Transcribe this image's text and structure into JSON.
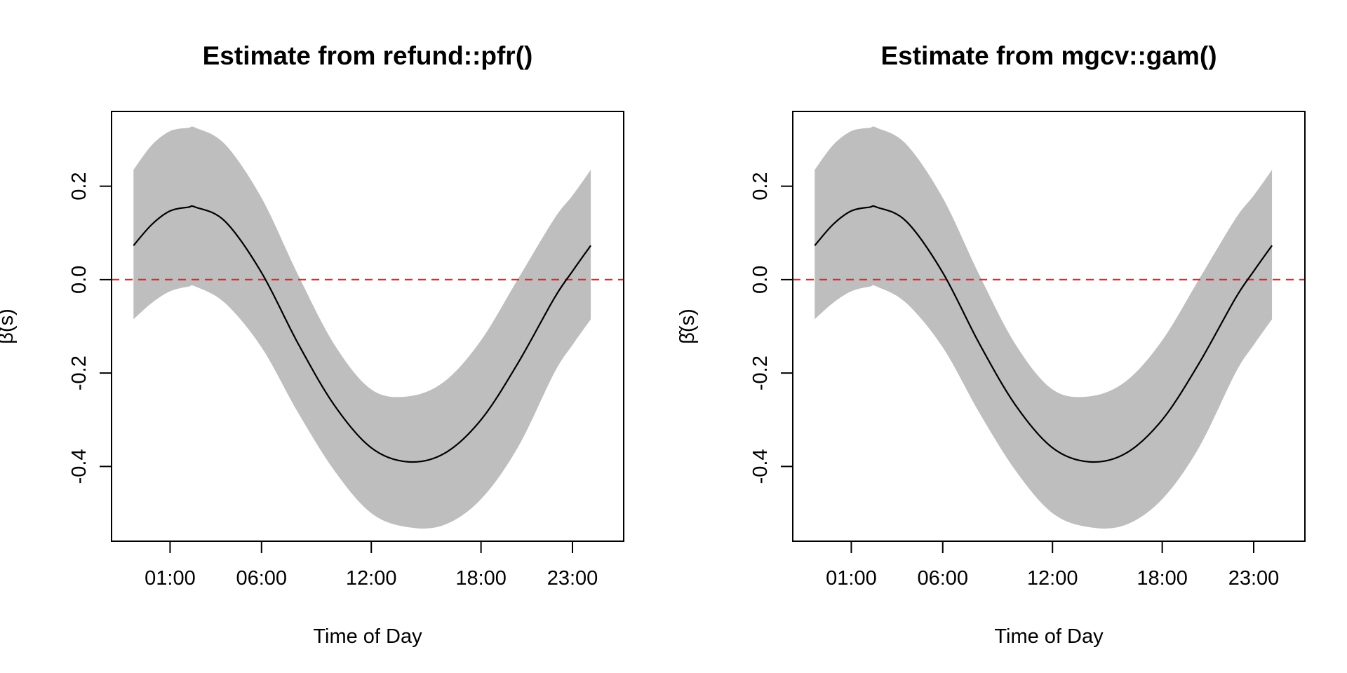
{
  "chart_data": [
    {
      "type": "line",
      "title": "Estimate from refund::pfr()",
      "xlabel": "Time of Day",
      "ylabel": "β̂(s)",
      "xlim": [
        -2.2,
        25.8
      ],
      "ylim": [
        -0.56,
        0.36
      ],
      "x_ticks": [
        {
          "value": 1,
          "label": "01:00"
        },
        {
          "value": 6,
          "label": "06:00"
        },
        {
          "value": 12,
          "label": "12:00"
        },
        {
          "value": 18,
          "label": "18:00"
        },
        {
          "value": 23,
          "label": "23:00"
        }
      ],
      "y_ticks": [
        {
          "value": 0.2,
          "label": "0.2"
        },
        {
          "value": 0.0,
          "label": "0.0"
        },
        {
          "value": -0.2,
          "label": "-0.2"
        },
        {
          "value": -0.4,
          "label": "-0.4"
        }
      ],
      "reference_line": {
        "y": 0,
        "color": "#e8262b",
        "style": "dashed"
      },
      "band_color": "#bebebe",
      "line_color": "#000000",
      "series": [
        {
          "role": "estimate",
          "x": [
            -1,
            0,
            1,
            2,
            2.4,
            4,
            6,
            8,
            10,
            12,
            14,
            16,
            18,
            20,
            22,
            23,
            24
          ],
          "values": [
            0.073,
            0.118,
            0.147,
            0.155,
            0.155,
            0.125,
            0.015,
            -0.137,
            -0.27,
            -0.36,
            -0.39,
            -0.372,
            -0.3,
            -0.18,
            -0.04,
            0.018,
            0.073
          ]
        },
        {
          "role": "upper",
          "x": [
            -1,
            0,
            1,
            2,
            2.4,
            4,
            6,
            8,
            10,
            12,
            14,
            16,
            18,
            20,
            22,
            23,
            24
          ],
          "values": [
            0.235,
            0.288,
            0.318,
            0.325,
            0.325,
            0.29,
            0.175,
            0.01,
            -0.14,
            -0.235,
            -0.25,
            -0.218,
            -0.13,
            0,
            0.13,
            0.18,
            0.235
          ]
        },
        {
          "role": "lower",
          "x": [
            -1,
            0,
            1,
            2,
            2.4,
            4,
            6,
            8,
            10,
            12,
            14,
            16,
            18,
            20,
            22,
            23,
            24
          ],
          "values": [
            -0.085,
            -0.05,
            -0.025,
            -0.015,
            -0.015,
            -0.05,
            -0.145,
            -0.285,
            -0.41,
            -0.5,
            -0.53,
            -0.525,
            -0.47,
            -0.36,
            -0.2,
            -0.14,
            -0.085
          ]
        }
      ]
    },
    {
      "type": "line",
      "title": "Estimate from mgcv::gam()",
      "xlabel": "Time of Day",
      "ylabel": "β̂(s)",
      "xlim": [
        -2.2,
        25.8
      ],
      "ylim": [
        -0.56,
        0.36
      ],
      "x_ticks": [
        {
          "value": 1,
          "label": "01:00"
        },
        {
          "value": 6,
          "label": "06:00"
        },
        {
          "value": 12,
          "label": "12:00"
        },
        {
          "value": 18,
          "label": "18:00"
        },
        {
          "value": 23,
          "label": "23:00"
        }
      ],
      "y_ticks": [
        {
          "value": 0.2,
          "label": "0.2"
        },
        {
          "value": 0.0,
          "label": "0.0"
        },
        {
          "value": -0.2,
          "label": "-0.2"
        },
        {
          "value": -0.4,
          "label": "-0.4"
        }
      ],
      "reference_line": {
        "y": 0,
        "color": "#e8262b",
        "style": "dashed"
      },
      "band_color": "#bebebe",
      "line_color": "#000000",
      "series": [
        {
          "role": "estimate",
          "x": [
            -1,
            0,
            1,
            2,
            2.4,
            4,
            6,
            8,
            10,
            12,
            14,
            16,
            18,
            20,
            22,
            23,
            24
          ],
          "values": [
            0.073,
            0.118,
            0.147,
            0.155,
            0.155,
            0.125,
            0.015,
            -0.137,
            -0.27,
            -0.36,
            -0.39,
            -0.372,
            -0.3,
            -0.18,
            -0.04,
            0.018,
            0.073
          ]
        },
        {
          "role": "upper",
          "x": [
            -1,
            0,
            1,
            2,
            2.4,
            4,
            6,
            8,
            10,
            12,
            14,
            16,
            18,
            20,
            22,
            23,
            24
          ],
          "values": [
            0.235,
            0.288,
            0.318,
            0.325,
            0.325,
            0.29,
            0.175,
            0.01,
            -0.14,
            -0.235,
            -0.25,
            -0.218,
            -0.13,
            0,
            0.13,
            0.18,
            0.235
          ]
        },
        {
          "role": "lower",
          "x": [
            -1,
            0,
            1,
            2,
            2.4,
            4,
            6,
            8,
            10,
            12,
            14,
            16,
            18,
            20,
            22,
            23,
            24
          ],
          "values": [
            -0.085,
            -0.05,
            -0.025,
            -0.015,
            -0.015,
            -0.05,
            -0.145,
            -0.285,
            -0.41,
            -0.5,
            -0.53,
            -0.525,
            -0.47,
            -0.36,
            -0.2,
            -0.14,
            -0.085
          ]
        }
      ]
    }
  ]
}
